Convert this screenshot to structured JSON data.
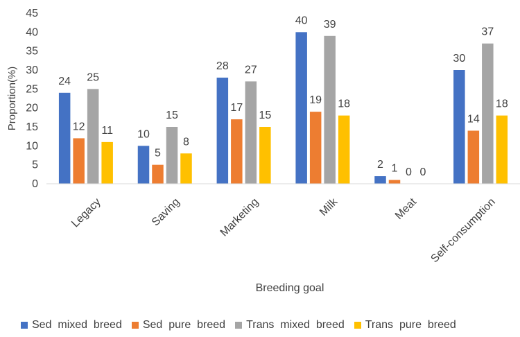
{
  "chart_data": {
    "type": "bar",
    "categories": [
      "Legacy",
      "Saving",
      "Marketing",
      "Milk",
      "Meat",
      "Self-consumption"
    ],
    "series": [
      {
        "name": "Sed  mixed  breed",
        "color": "#4472C4",
        "values": [
          24,
          10,
          28,
          40,
          2,
          30
        ]
      },
      {
        "name": "Sed  pure  breed",
        "color": "#ED7D31",
        "values": [
          12,
          5,
          17,
          19,
          1,
          14
        ]
      },
      {
        "name": "Trans  mixed  breed",
        "color": "#A5A5A5",
        "values": [
          25,
          15,
          27,
          39,
          0,
          37
        ]
      },
      {
        "name": "Trans  pure  breed",
        "color": "#FFC000",
        "values": [
          11,
          8,
          15,
          18,
          0,
          18
        ]
      }
    ],
    "xlabel": "Breeding goal",
    "ylabel": "Proportion(%)",
    "ylim": [
      0,
      45
    ],
    "yticks": [
      0,
      5,
      10,
      15,
      20,
      25,
      30,
      35,
      40,
      45
    ],
    "grid": false,
    "legend_position": "bottom",
    "data_labels": true
  }
}
